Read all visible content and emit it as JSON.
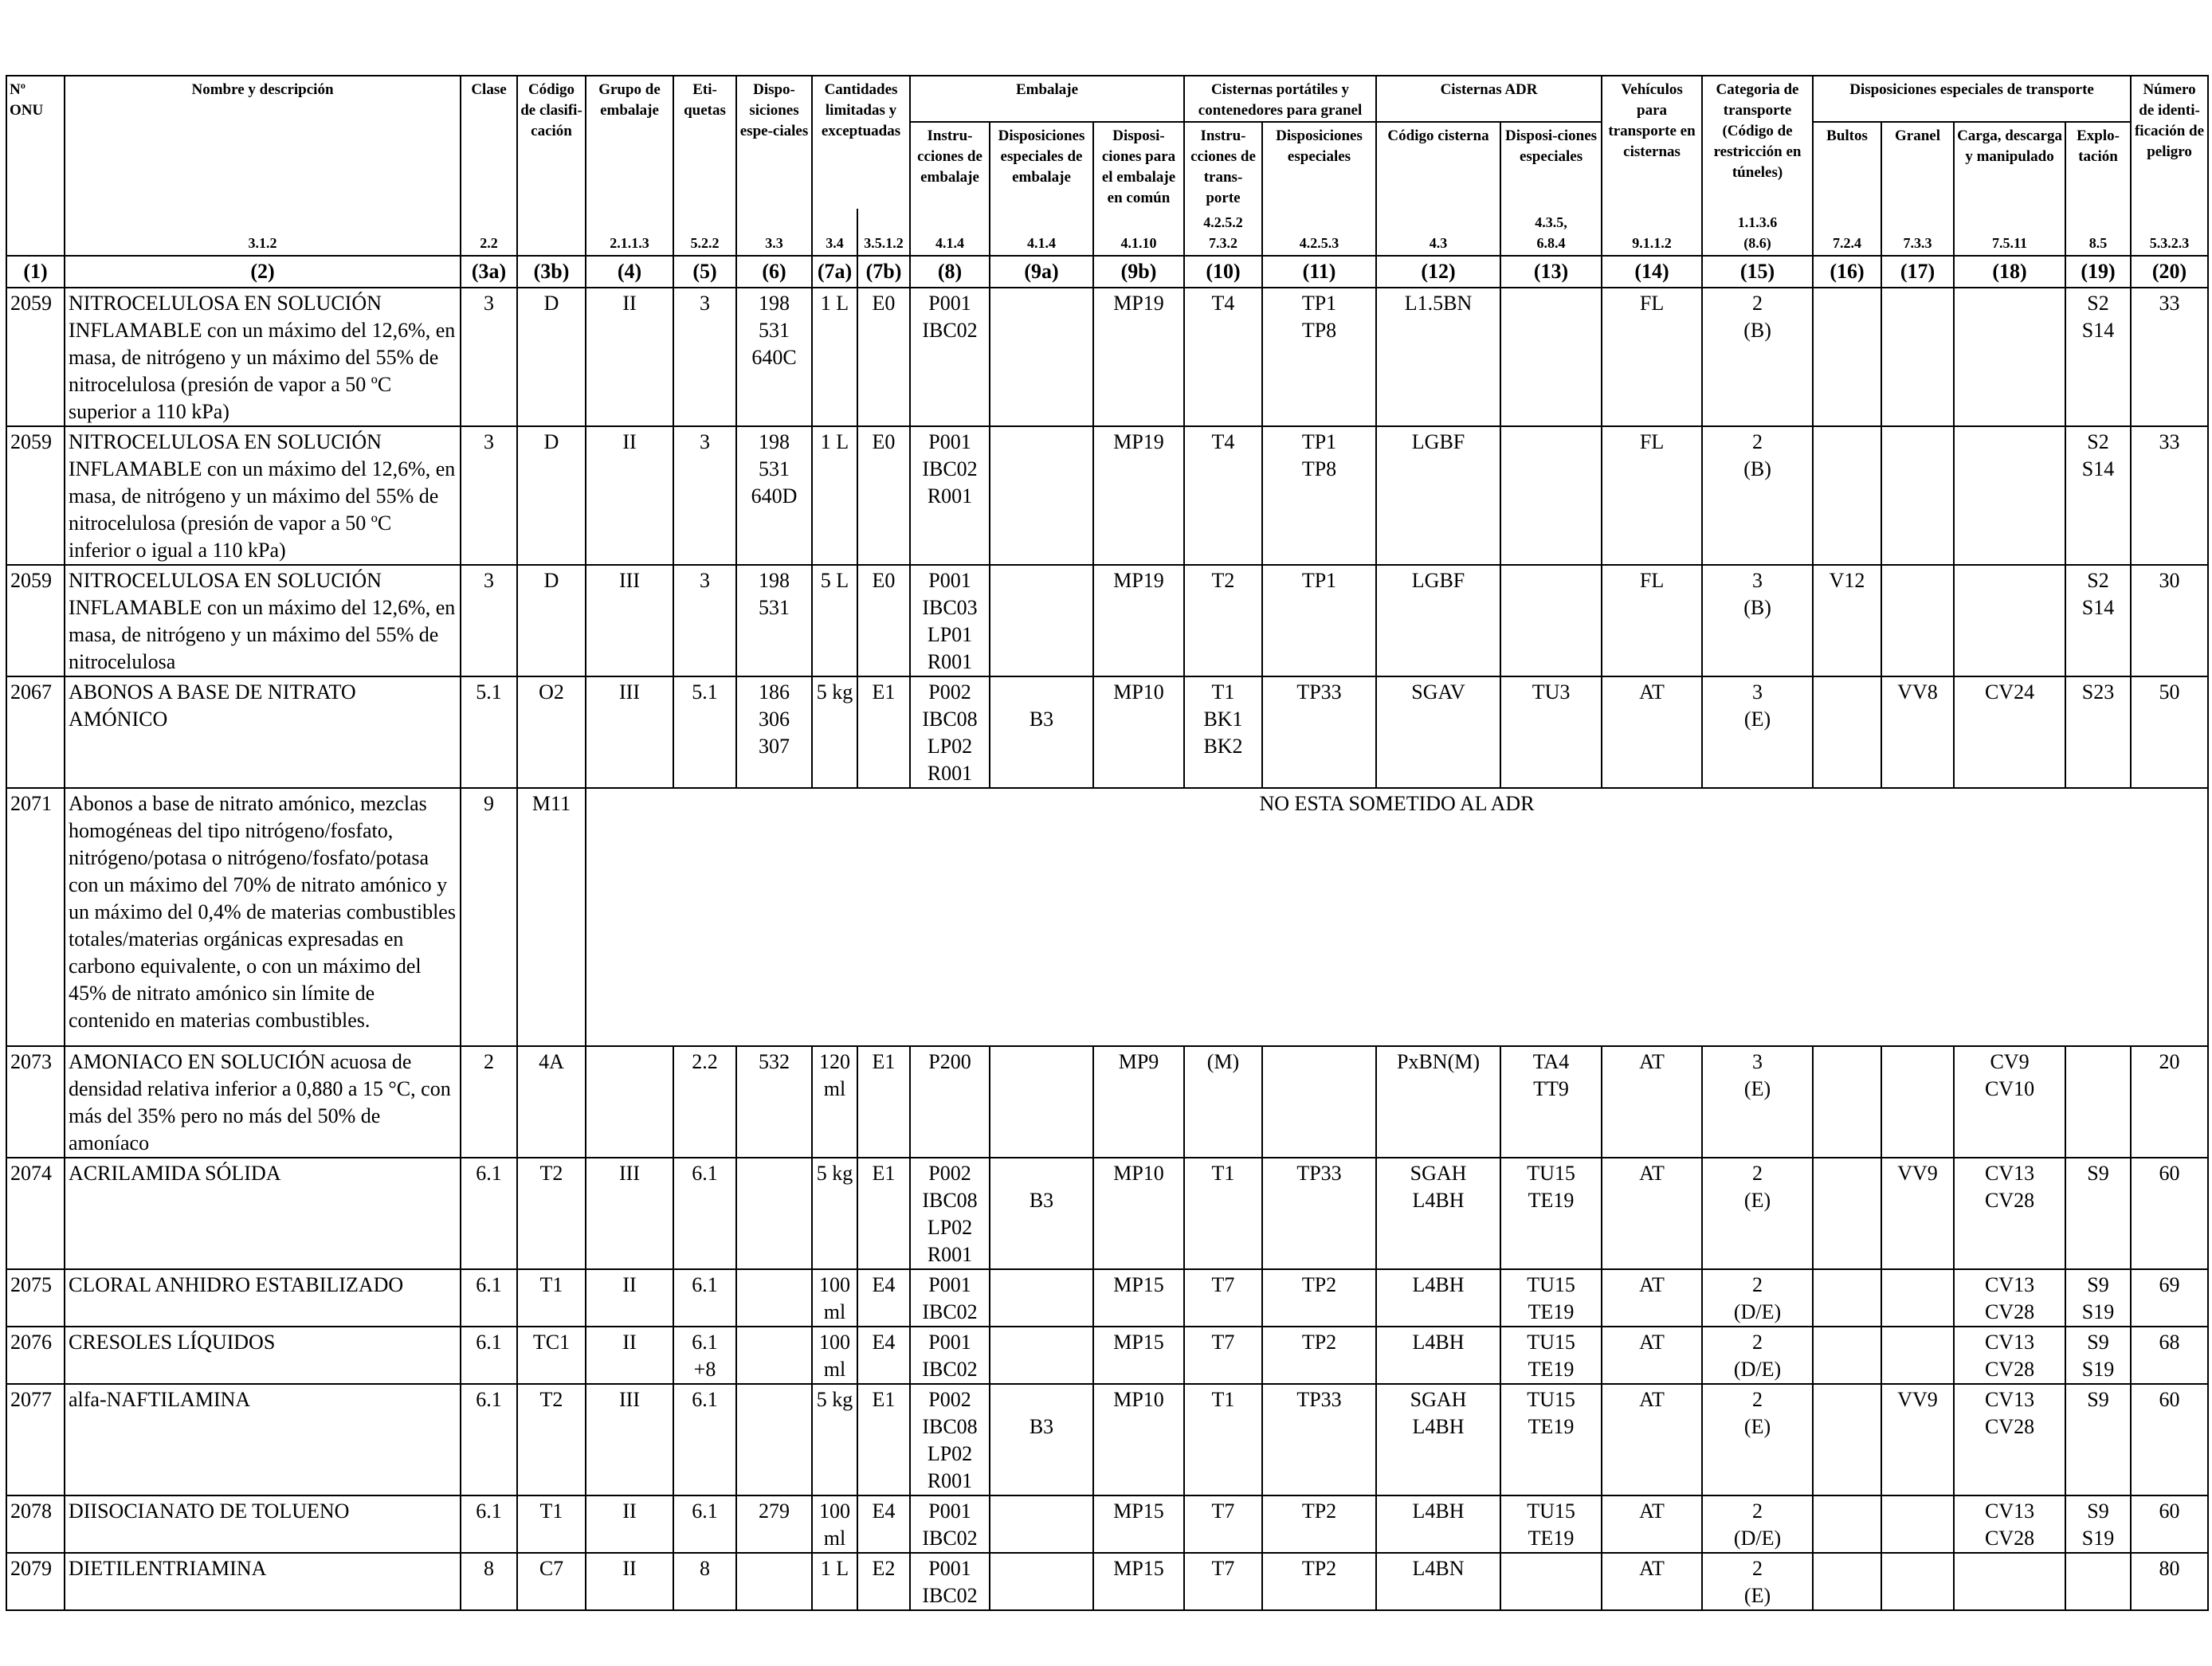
{
  "header": {
    "onu": "Nº ONU",
    "name": "Nombre y descripción",
    "clase": "Clase",
    "codigo": "Código de clasifi-cación",
    "grupo": "Grupo de embalaje",
    "etiquetas": "Eti-quetas",
    "disposiciones": "Dispo-siciones espe-ciales",
    "cantidades": "Cantidades limitadas y exceptuadas",
    "embalaje": "Embalaje",
    "emb_instr": "Instru-cciones de embalaje",
    "emb_disp": "Disposiciones especiales de embalaje",
    "emb_comun": "Disposi-ciones para el embalaje en común",
    "cisternas_port": "Cisternas portátiles y contenedores para granel",
    "cp_instr": "Instru-cciones de trans-porte",
    "cp_disp": "Disposiciones especiales",
    "cisternas_adr": "Cisternas ADR",
    "adr_codigo": "Código cisterna",
    "adr_disp": "Disposi-ciones especiales",
    "vehiculos": "Vehículos para transporte en cisternas",
    "categoria": "Categoria de transporte (Código de restricción en túneles)",
    "disp_transporte": "Disposiciones especiales de transporte",
    "bultos": "Bultos",
    "granel": "Granel",
    "carga": "Carga, descarga y manipulado",
    "explotacion": "Explo-tación",
    "numero": "Número de identi-ficación de peligro"
  },
  "refs": [
    "",
    "3.1.2",
    "2.2",
    "",
    "2.1.1.3",
    "5.2.2",
    "3.3",
    "3.4",
    "3.5.1.2",
    "4.1.4",
    "4.1.4",
    "4.1.10",
    "4.2.5.2 7.3.2",
    "4.2.5.3",
    "4.3",
    "4.3.5, 6.8.4",
    "9.1.1.2",
    "1.1.3.6 (8.6)",
    "7.2.4",
    "7.3.3",
    "7.5.11",
    "8.5",
    "5.3.2.3"
  ],
  "colnums": [
    "(1)",
    "(2)",
    "(3a)",
    "(3b)",
    "(4)",
    "(5)",
    "(6)",
    "(7a)",
    "(7b)",
    "(8)",
    "(9a)",
    "(9b)",
    "(10)",
    "(11)",
    "(12)",
    "(13)",
    "(14)",
    "(15)",
    "(16)",
    "(17)",
    "(18)",
    "(19)",
    "(20)"
  ],
  "rows": [
    {
      "onu": "2059",
      "name": "NITROCELULOSA EN SOLUCIÓN INFLAMABLE con un máximo del 12,6%, en masa, de nitrógeno y un máximo del 55% de nitrocelulosa (presión de vapor a 50 ºC superior a 110 kPa)",
      "c3a": "3",
      "c3b": "D",
      "c4": "II",
      "c5": "3",
      "c6": [
        "198",
        "531",
        "640C"
      ],
      "c7a": [
        "1 L"
      ],
      "c7b": "E0",
      "c8": [
        "P001",
        "IBC02"
      ],
      "c9a": [],
      "c9b": "MP19",
      "c10": [
        "T4"
      ],
      "c11": [
        "TP1",
        "TP8"
      ],
      "c12": [
        "L1.5BN"
      ],
      "c13": [],
      "c14": "FL",
      "c15": [
        "2",
        "(B)"
      ],
      "c16": "",
      "c17": "",
      "c18": [],
      "c19": [
        "S2",
        "S14"
      ],
      "c20": "33"
    },
    {
      "onu": "2059",
      "name": "NITROCELULOSA EN SOLUCIÓN INFLAMABLE con un máximo del 12,6%, en masa, de nitrógeno y un máximo del 55% de nitrocelulosa (presión de vapor a 50 ºC inferior o igual a 110 kPa)",
      "c3a": "3",
      "c3b": "D",
      "c4": "II",
      "c5": "3",
      "c6": [
        "198",
        "531",
        "640D"
      ],
      "c7a": [
        "1 L"
      ],
      "c7b": "E0",
      "c8": [
        "P001",
        "IBC02",
        "R001"
      ],
      "c9a": [],
      "c9b": "MP19",
      "c10": [
        "T4"
      ],
      "c11": [
        "TP1",
        "TP8"
      ],
      "c12": [
        "LGBF"
      ],
      "c13": [],
      "c14": "FL",
      "c15": [
        "2",
        "(B)"
      ],
      "c16": "",
      "c17": "",
      "c18": [],
      "c19": [
        "S2",
        "S14"
      ],
      "c20": "33"
    },
    {
      "onu": "2059",
      "name": "NITROCELULOSA EN SOLUCIÓN INFLAMABLE con un máximo del 12,6%, en masa, de nitrógeno y un máximo del 55% de nitrocelulosa",
      "c3a": "3",
      "c3b": "D",
      "c4": "III",
      "c5": "3",
      "c6": [
        "198",
        "531"
      ],
      "c7a": [
        "5 L"
      ],
      "c7b": "E0",
      "c8": [
        "P001",
        "IBC03",
        "LP01",
        "R001"
      ],
      "c9a": [],
      "c9b": "MP19",
      "c10": [
        "T2"
      ],
      "c11": [
        "TP1"
      ],
      "c12": [
        "LGBF"
      ],
      "c13": [],
      "c14": "FL",
      "c15": [
        "3",
        "(B)"
      ],
      "c16": "V12",
      "c17": "",
      "c18": [],
      "c19": [
        "S2",
        "S14"
      ],
      "c20": "30"
    },
    {
      "onu": "2067",
      "name": "ABONOS A BASE DE NITRATO AMÓNICO",
      "c3a": "5.1",
      "c3b": "O2",
      "c4": "III",
      "c5": "5.1",
      "c6": [
        "186",
        "306",
        "307"
      ],
      "c7a": [
        "5 kg"
      ],
      "c7b": "E1",
      "c8": [
        "P002",
        "IBC08",
        "LP02",
        "R001"
      ],
      "c9a": [
        "",
        "B3"
      ],
      "c9b": "MP10",
      "c10": [
        "T1",
        "BK1",
        "BK2"
      ],
      "c11": [
        "TP33"
      ],
      "c12": [
        "SGAV"
      ],
      "c13": [
        "TU3"
      ],
      "c14": "AT",
      "c15": [
        "3",
        "(E)"
      ],
      "c16": "",
      "c17": "VV8",
      "c18": [
        "CV24"
      ],
      "c19": [
        "S23"
      ],
      "c20": "50"
    },
    {
      "onu": "2071",
      "name": "Abonos a base de nitrato amónico, mezclas homogéneas del tipo nitrógeno/fosfato, nitrógeno/potasa o nitrógeno/fosfato/potasa con un máximo del 70% de nitrato amónico y un máximo del 0,4% de materias combustibles totales/materias orgánicas expresadas en carbono equivalente, o con un máximo del 45% de nitrato amónico sin límite de contenido en materias combustibles.",
      "c3a": "9",
      "c3b": "M11",
      "not_subject": "NO ESTA SOMETIDO AL ADR"
    },
    {
      "onu": "2073",
      "name": "AMONIACO EN SOLUCIÓN acuosa de densidad relativa inferior a 0,880 a 15 °C, con más del 35% pero no más del 50% de amoníaco",
      "c3a": "2",
      "c3b": "4A",
      "c4": "",
      "c5": "2.2",
      "c6": [
        "532"
      ],
      "c7a": [
        "120",
        "ml"
      ],
      "c7b": "E1",
      "c8": [
        "P200"
      ],
      "c9a": [],
      "c9b": "MP9",
      "c10": [
        "(M)"
      ],
      "c11": [],
      "c12": [
        "PxBN(M)"
      ],
      "c13": [
        "TA4",
        "TT9"
      ],
      "c14": "AT",
      "c15": [
        "3",
        "(E)"
      ],
      "c16": "",
      "c17": "",
      "c18": [
        "CV9",
        "CV10"
      ],
      "c19": [],
      "c20": "20"
    },
    {
      "onu": "2074",
      "name": "ACRILAMIDA SÓLIDA",
      "c3a": "6.1",
      "c3b": "T2",
      "c4": "III",
      "c5": "6.1",
      "c6": [],
      "c7a": [
        "5 kg"
      ],
      "c7b": "E1",
      "c8": [
        "P002",
        "IBC08",
        "LP02",
        "R001"
      ],
      "c9a": [
        "",
        "B3"
      ],
      "c9b": "MP10",
      "c10": [
        "T1"
      ],
      "c11": [
        "TP33"
      ],
      "c12": [
        "SGAH",
        "L4BH"
      ],
      "c13": [
        "TU15",
        "TE19"
      ],
      "c14": "AT",
      "c15": [
        "2",
        "(E)"
      ],
      "c16": "",
      "c17": "VV9",
      "c18": [
        "CV13",
        "CV28"
      ],
      "c19": [
        "S9"
      ],
      "c20": "60"
    },
    {
      "onu": "2075",
      "name": "CLORAL ANHIDRO ESTABILIZADO",
      "c3a": "6.1",
      "c3b": "T1",
      "c4": "II",
      "c5": "6.1",
      "c6": [],
      "c7a": [
        "100",
        "ml"
      ],
      "c7b": "E4",
      "c8": [
        "P001",
        "IBC02"
      ],
      "c9a": [],
      "c9b": "MP15",
      "c10": [
        "T7"
      ],
      "c11": [
        "TP2"
      ],
      "c12": [
        "L4BH"
      ],
      "c13": [
        "TU15",
        "TE19"
      ],
      "c14": "AT",
      "c15": [
        "2",
        "(D/E)"
      ],
      "c16": "",
      "c17": "",
      "c18": [
        "CV13",
        "CV28"
      ],
      "c19": [
        "S9",
        "S19"
      ],
      "c20": "69"
    },
    {
      "onu": "2076",
      "name": "CRESOLES LÍQUIDOS",
      "c3a": "6.1",
      "c3b": "TC1",
      "c4": "II",
      "c5": "6.1 +8",
      "c6": [],
      "c7a": [
        "100",
        "ml"
      ],
      "c7b": "E4",
      "c8": [
        "P001",
        "IBC02"
      ],
      "c9a": [],
      "c9b": "MP15",
      "c10": [
        "T7"
      ],
      "c11": [
        "TP2"
      ],
      "c12": [
        "L4BH"
      ],
      "c13": [
        "TU15",
        "TE19"
      ],
      "c14": "AT",
      "c15": [
        "2",
        "(D/E)"
      ],
      "c16": "",
      "c17": "",
      "c18": [
        "CV13",
        "CV28"
      ],
      "c19": [
        "S9",
        "S19"
      ],
      "c20": "68"
    },
    {
      "onu": "2077",
      "name": "alfa-NAFTILAMINA",
      "c3a": "6.1",
      "c3b": "T2",
      "c4": "III",
      "c5": "6.1",
      "c6": [],
      "c7a": [
        "5 kg"
      ],
      "c7b": "E1",
      "c8": [
        "P002",
        "IBC08",
        "LP02",
        "R001"
      ],
      "c9a": [
        "",
        "B3"
      ],
      "c9b": "MP10",
      "c10": [
        "T1"
      ],
      "c11": [
        "TP33"
      ],
      "c12": [
        "SGAH",
        "L4BH"
      ],
      "c13": [
        "TU15",
        "TE19"
      ],
      "c14": "AT",
      "c15": [
        "2",
        "(E)"
      ],
      "c16": "",
      "c17": "VV9",
      "c18": [
        "CV13",
        "CV28"
      ],
      "c19": [
        "S9"
      ],
      "c20": "60"
    },
    {
      "onu": "2078",
      "name": "DIISOCIANATO DE TOLUENO",
      "c3a": "6.1",
      "c3b": "T1",
      "c4": "II",
      "c5": "6.1",
      "c6": [
        "279"
      ],
      "c7a": [
        "100",
        "ml"
      ],
      "c7b": "E4",
      "c8": [
        "P001",
        "IBC02"
      ],
      "c9a": [],
      "c9b": "MP15",
      "c10": [
        "T7"
      ],
      "c11": [
        "TP2"
      ],
      "c12": [
        "L4BH"
      ],
      "c13": [
        "TU15",
        "TE19"
      ],
      "c14": "AT",
      "c15": [
        "2",
        "(D/E)"
      ],
      "c16": "",
      "c17": "",
      "c18": [
        "CV13",
        "CV28"
      ],
      "c19": [
        "S9",
        "S19"
      ],
      "c20": "60"
    },
    {
      "onu": "2079",
      "name": "DIETILENTRIAMINA",
      "c3a": "8",
      "c3b": "C7",
      "c4": "II",
      "c5": "8",
      "c6": [],
      "c7a": [
        "1 L"
      ],
      "c7b": "E2",
      "c8": [
        "P001",
        "IBC02"
      ],
      "c9a": [],
      "c9b": "MP15",
      "c10": [
        "T7"
      ],
      "c11": [
        "TP2"
      ],
      "c12": [
        "L4BN"
      ],
      "c13": [],
      "c14": "AT",
      "c15": [
        "2",
        "(E)"
      ],
      "c16": "",
      "c17": "",
      "c18": [],
      "c19": [],
      "c20": "80"
    }
  ]
}
